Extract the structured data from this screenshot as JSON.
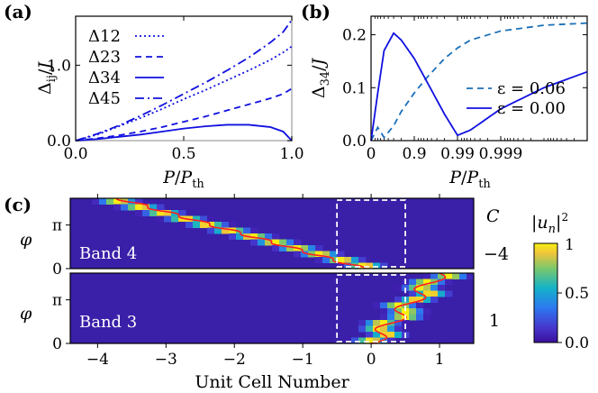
{
  "chart_data": [
    {
      "panel": "(a)",
      "type": "line",
      "xlabel": "P/P_th",
      "ylabel": "Δ_ij/J",
      "xlim": [
        0.0,
        1.0
      ],
      "ylim": [
        0.0,
        1.65
      ],
      "xticks": [
        "0.0",
        "0.5",
        "1.0"
      ],
      "yticks": [
        "0.0",
        "1.0"
      ],
      "x": [
        0.0,
        0.1,
        0.2,
        0.3,
        0.4,
        0.5,
        0.6,
        0.7,
        0.8,
        0.9,
        0.96,
        1.0
      ],
      "series": [
        {
          "name": "Δ12",
          "style": "dotted",
          "values": [
            0.0,
            0.08,
            0.19,
            0.3,
            0.42,
            0.55,
            0.67,
            0.8,
            0.93,
            1.07,
            1.17,
            1.25
          ]
        },
        {
          "name": "Δ23",
          "style": "dashed",
          "values": [
            0.0,
            0.03,
            0.07,
            0.12,
            0.18,
            0.25,
            0.32,
            0.4,
            0.48,
            0.56,
            0.62,
            0.69
          ]
        },
        {
          "name": "Δ34",
          "style": "solid",
          "values": [
            0.0,
            0.02,
            0.05,
            0.08,
            0.12,
            0.16,
            0.19,
            0.21,
            0.21,
            0.18,
            0.12,
            0.0
          ]
        },
        {
          "name": "Δ45",
          "style": "dashdot",
          "values": [
            0.0,
            0.09,
            0.2,
            0.33,
            0.47,
            0.62,
            0.77,
            0.93,
            1.1,
            1.3,
            1.44,
            1.6
          ]
        }
      ],
      "legend": "top-left"
    },
    {
      "panel": "(b)",
      "type": "line",
      "xlabel": "P/P_th",
      "ylabel": "Δ34/J",
      "xscale": "log(1 - P/P_th)",
      "xlim": [
        0.0,
        0.99999
      ],
      "ylim": [
        0.0,
        0.235
      ],
      "xticks": [
        "0",
        "0.9",
        "0.99",
        "0.999"
      ],
      "yticks": [
        "0.0",
        "0.1",
        "0.2"
      ],
      "x": [
        0.0,
        0.3,
        0.5,
        0.7,
        0.8,
        0.9,
        0.95,
        0.98,
        0.99,
        0.995,
        0.999,
        0.9999,
        0.99999
      ],
      "series": [
        {
          "name": "ε = 0.06",
          "style": "dashed",
          "values": [
            0.0,
            0.025,
            0.006,
            0.028,
            0.055,
            0.09,
            0.12,
            0.155,
            0.175,
            0.19,
            0.207,
            0.218,
            0.222
          ]
        },
        {
          "name": "ε = 0.00",
          "style": "solid",
          "values": [
            0.0,
            0.09,
            0.17,
            0.203,
            0.19,
            0.155,
            0.11,
            0.05,
            0.01,
            0.02,
            0.06,
            0.1,
            0.13
          ]
        }
      ],
      "legend": "center-right"
    },
    {
      "panel": "(c)",
      "type": "heatmap",
      "xlabel": "Unit Cell Number",
      "ylabel": "φ",
      "xlim": [
        -4.4,
        1.5
      ],
      "xticks": [
        "−4",
        "−3",
        "−2",
        "−1",
        "0",
        "1"
      ],
      "yticks": [
        "0",
        "π"
      ],
      "colorbar_label": "|u_n|^2",
      "colorbar_ticks": [
        "0.0",
        "0.5",
        "1"
      ],
      "chern_label": "C",
      "bands": [
        {
          "name": "Band 4",
          "chern": "−4"
        },
        {
          "name": "Band 3",
          "chern": "1"
        }
      ]
    }
  ]
}
